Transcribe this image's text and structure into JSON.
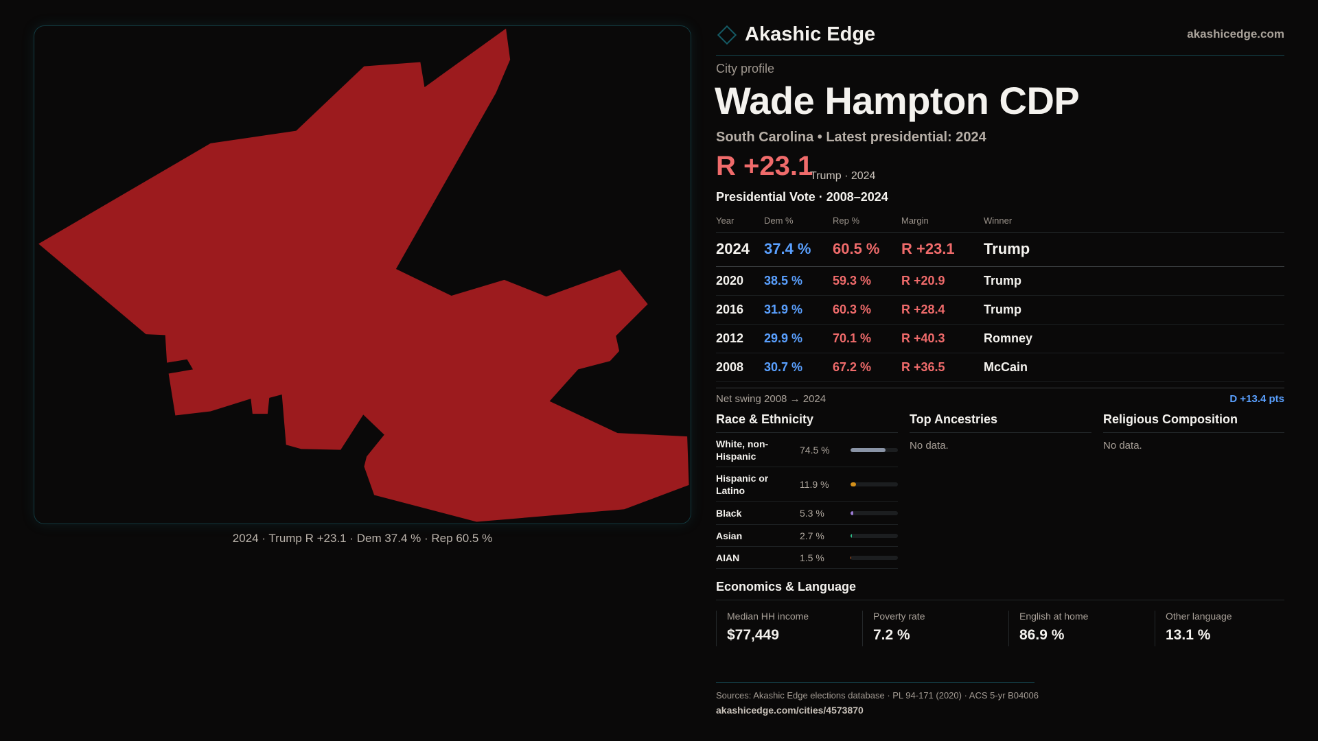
{
  "brand": {
    "name": "Akashic Edge",
    "site": "akashicedge.com"
  },
  "profile": {
    "kicker": "City profile",
    "title": "Wade Hampton CDP",
    "subtitle": "South Carolina • Latest presidential: 2024",
    "margin": "R +23.1",
    "margin_note": "Trump · 2024"
  },
  "map": {
    "fill_color": "#9c1b1e",
    "caption": "2024 · Trump R +23.1 · Dem 37.4 % · Rep 60.5 %"
  },
  "presidential": {
    "title": "Presidential Vote · 2008–2024",
    "headers": [
      "Year",
      "Dem %",
      "Rep %",
      "Margin",
      "Winner"
    ],
    "rows": [
      {
        "year": "2024",
        "dem": "37.4 %",
        "rep": "60.5 %",
        "margin": "R +23.1",
        "winner": "Trump"
      },
      {
        "year": "2020",
        "dem": "38.5 %",
        "rep": "59.3 %",
        "margin": "R +20.9",
        "winner": "Trump"
      },
      {
        "year": "2016",
        "dem": "31.9 %",
        "rep": "60.3 %",
        "margin": "R +28.4",
        "winner": "Trump"
      },
      {
        "year": "2012",
        "dem": "29.9 %",
        "rep": "70.1 %",
        "margin": "R +40.3",
        "winner": "Romney"
      },
      {
        "year": "2008",
        "dem": "30.7 %",
        "rep": "67.2 %",
        "margin": "R +36.5",
        "winner": "McCain"
      }
    ],
    "swing_label": "Net swing 2008 → 2024",
    "swing_value": "D +13.4 pts"
  },
  "race": {
    "title": "Race & Ethnicity",
    "rows": [
      {
        "label": "White, non-Hispanic",
        "value": "74.5 %",
        "pct": 74.5,
        "color": "#8a94a6"
      },
      {
        "label": "Hispanic or Latino",
        "value": "11.9 %",
        "pct": 11.9,
        "color": "#d4901a"
      },
      {
        "label": "Black",
        "value": "5.3 %",
        "pct": 5.3,
        "color": "#9b7bd4"
      },
      {
        "label": "Asian",
        "value": "2.7 %",
        "pct": 2.7,
        "color": "#2fbf8a"
      },
      {
        "label": "AIAN",
        "value": "1.5 %",
        "pct": 1.5,
        "color": "#e06a2a"
      }
    ]
  },
  "ancestries": {
    "title": "Top Ancestries",
    "empty": "No data."
  },
  "religion": {
    "title": "Religious Composition",
    "empty": "No data."
  },
  "economics": {
    "title": "Economics & Language",
    "cards": [
      {
        "label": "Median HH income",
        "value": "$77,449"
      },
      {
        "label": "Poverty rate",
        "value": "7.2 %"
      },
      {
        "label": "English at home",
        "value": "86.9 %"
      },
      {
        "label": "Other language",
        "value": "13.1 %"
      }
    ]
  },
  "footer": {
    "sources": "Sources: Akashic Edge elections database · PL 94-171 (2020) · ACS 5-yr B04006",
    "url": "akashicedge.com/cities/4573870"
  }
}
